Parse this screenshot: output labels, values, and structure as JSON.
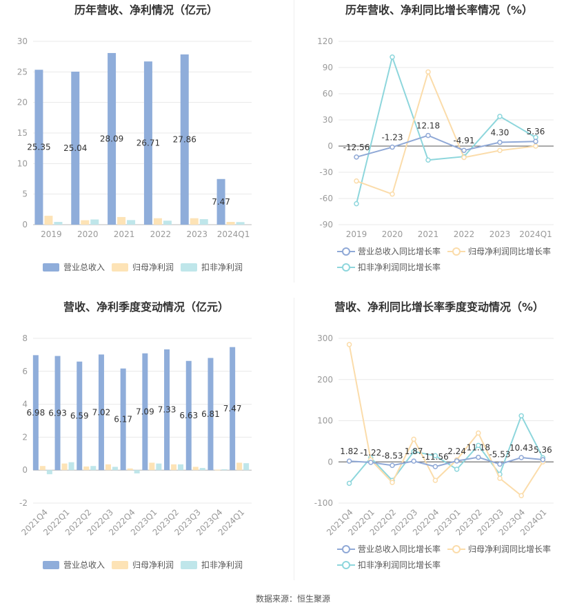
{
  "colors": {
    "revenue": "#8fadda",
    "net_profit": "#fde3b6",
    "deducted_profit": "#bfe6ea",
    "revenue_line": "#8fa8d6",
    "net_profit_line": "#fbdcaa",
    "deducted_profit_line": "#8dd6dc",
    "grid": "#e8e8e8",
    "axis_text": "#999999",
    "title": "#333333"
  },
  "footer": {
    "source": "数据来源：恒生聚源"
  },
  "chart_data": [
    {
      "id": "annual-bar",
      "type": "bar",
      "title": "历年营收、净利情况（亿元）",
      "categories": [
        "2019",
        "2020",
        "2021",
        "2022",
        "2023",
        "2024Q1"
      ],
      "ylim": [
        0,
        30
      ],
      "yticks": [
        0,
        5,
        10,
        15,
        20,
        25,
        30
      ],
      "series": [
        {
          "name": "营业总收入",
          "values": [
            25.35,
            25.04,
            28.09,
            26.71,
            27.86,
            7.47
          ],
          "labels": [
            "25.35",
            "25.04",
            "28.09",
            "26.71",
            "27.86",
            "7.47"
          ]
        },
        {
          "name": "归母净利润",
          "values": [
            1.45,
            0.72,
            1.25,
            1.05,
            1.05,
            0.45
          ]
        },
        {
          "name": "扣非净利润",
          "values": [
            0.45,
            0.85,
            0.75,
            0.65,
            0.9,
            0.42
          ]
        }
      ],
      "grid": true,
      "legend": "bottom"
    },
    {
      "id": "annual-line",
      "type": "line",
      "title": "历年营收、净利同比增长率情况（%）",
      "categories": [
        "2019",
        "2020",
        "2021",
        "2022",
        "2023",
        "2024Q1"
      ],
      "ylim": [
        -90,
        120
      ],
      "yticks": [
        -90,
        -60,
        -30,
        0,
        30,
        60,
        90,
        120
      ],
      "series": [
        {
          "name": "营业总收入同比增长率",
          "values": [
            -12.56,
            -1.23,
            12.18,
            -4.91,
            4.3,
            5.36
          ],
          "labels": [
            "-12.56",
            "-1.23",
            "12.18",
            "-4.91",
            "4.30",
            "5.36"
          ]
        },
        {
          "name": "归母净利润同比增长率",
          "values": [
            -40,
            -55,
            85,
            -13,
            -5,
            0
          ]
        },
        {
          "name": "扣非净利润同比增长率",
          "values": [
            -66,
            102,
            -16,
            -12,
            34,
            10
          ]
        }
      ],
      "grid": true,
      "legend": "bottom"
    },
    {
      "id": "quarter-bar",
      "type": "bar",
      "title": "营收、净利季度变动情况（亿元）",
      "categories": [
        "2021Q4",
        "2022Q1",
        "2022Q2",
        "2022Q3",
        "2022Q4",
        "2023Q1",
        "2023Q2",
        "2023Q3",
        "2023Q4",
        "2024Q1"
      ],
      "ylim": [
        -2,
        8
      ],
      "yticks": [
        -2,
        0,
        2,
        4,
        6,
        8
      ],
      "series": [
        {
          "name": "营业总收入",
          "values": [
            6.98,
            6.93,
            6.59,
            7.02,
            6.17,
            7.09,
            7.33,
            6.63,
            6.81,
            7.47
          ],
          "labels": [
            "6.98",
            "6.93",
            "6.59",
            "7.02",
            "6.17",
            "7.09",
            "7.33",
            "6.63",
            "6.81",
            "7.47"
          ]
        },
        {
          "name": "归母净利润",
          "values": [
            0.25,
            0.4,
            0.22,
            0.35,
            0.1,
            0.45,
            0.35,
            0.2,
            0.03,
            0.45
          ]
        },
        {
          "name": "扣非净利润",
          "values": [
            -0.25,
            0.48,
            0.25,
            0.2,
            -0.2,
            0.4,
            0.35,
            0.13,
            0.05,
            0.42
          ]
        }
      ],
      "grid": true,
      "legend": "bottom"
    },
    {
      "id": "quarter-line",
      "type": "line",
      "title": "营收、净利同比增长率季度变动情况（%）",
      "categories": [
        "2021Q4",
        "2022Q1",
        "2022Q2",
        "2022Q3",
        "2022Q4",
        "2023Q1",
        "2023Q2",
        "2023Q3",
        "2023Q4",
        "2024Q1"
      ],
      "ylim": [
        -100,
        300
      ],
      "yticks": [
        -100,
        0,
        100,
        200,
        300
      ],
      "series": [
        {
          "name": "营业总收入同比增长率",
          "values": [
            1.82,
            -1.22,
            -8.53,
            1.87,
            -11.56,
            2.24,
            11.18,
            -5.53,
            10.43,
            5.36
          ],
          "labels": [
            "1.82",
            "-1.22",
            "-8.53",
            "1.87",
            "-11.56",
            "2.24",
            "11.18",
            "-5.53",
            "10.43",
            "5.36"
          ]
        },
        {
          "name": "归母净利润同比增长率",
          "values": [
            285,
            5,
            -50,
            55,
            -45,
            5,
            70,
            -40,
            -82,
            0
          ]
        },
        {
          "name": "扣非净利润同比增长率",
          "values": [
            -52,
            10,
            -45,
            25,
            15,
            -18,
            40,
            -30,
            112,
            10
          ]
        }
      ],
      "grid": true,
      "legend": "bottom"
    }
  ]
}
